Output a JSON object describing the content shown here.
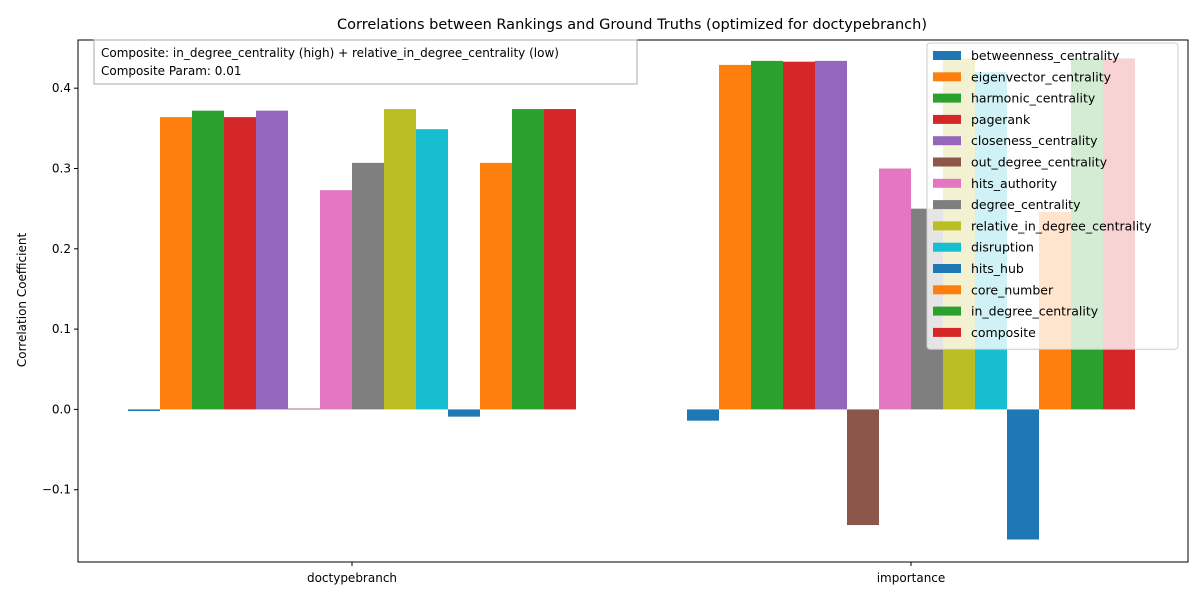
{
  "chart_data": {
    "type": "bar",
    "title": "Correlations between Rankings and Ground Truths (optimized for doctypebranch)",
    "xlabel": "",
    "ylabel": "Correlation Coefficient",
    "categories": [
      "doctypebranch",
      "importance"
    ],
    "ylim": [
      -0.19,
      0.46
    ],
    "yticks": [
      -0.1,
      0.0,
      0.1,
      0.2,
      0.3,
      0.4
    ],
    "ytick_labels": [
      "−0.1",
      "0.0",
      "0.1",
      "0.2",
      "0.3",
      "0.4"
    ],
    "legend_position": "upper right",
    "grid": false,
    "annotation": [
      "Composite: in_degree_centrality (high) + relative_in_degree_centrality (low)",
      "Composite Param: 0.01"
    ],
    "series": [
      {
        "name": "betweenness_centrality",
        "color": "#1f77b4",
        "values": [
          -0.002,
          -0.014
        ]
      },
      {
        "name": "eigenvector_centrality",
        "color": "#ff7f0e",
        "values": [
          0.364,
          0.429
        ]
      },
      {
        "name": "harmonic_centrality",
        "color": "#2ca02c",
        "values": [
          0.372,
          0.434
        ]
      },
      {
        "name": "pagerank",
        "color": "#d62728",
        "values": [
          0.364,
          0.433
        ]
      },
      {
        "name": "closeness_centrality",
        "color": "#9467bd",
        "values": [
          0.372,
          0.434
        ]
      },
      {
        "name": "out_degree_centrality",
        "color": "#8c564b",
        "values": [
          0.001,
          -0.144
        ]
      },
      {
        "name": "hits_authority",
        "color": "#e377c2",
        "values": [
          0.273,
          0.3
        ]
      },
      {
        "name": "degree_centrality",
        "color": "#7f7f7f",
        "values": [
          0.307,
          0.25
        ]
      },
      {
        "name": "relative_in_degree_centrality",
        "color": "#bcbd22",
        "values": [
          0.374,
          0.437
        ]
      },
      {
        "name": "disruption",
        "color": "#17becf",
        "values": [
          0.349,
          0.42
        ]
      },
      {
        "name": "hits_hub",
        "color": "#1f77b4",
        "values": [
          -0.009,
          -0.162
        ]
      },
      {
        "name": "core_number",
        "color": "#ff7f0e",
        "values": [
          0.307,
          0.246
        ]
      },
      {
        "name": "in_degree_centrality",
        "color": "#2ca02c",
        "values": [
          0.374,
          0.437
        ]
      },
      {
        "name": "composite",
        "color": "#d62728",
        "values": [
          0.374,
          0.437
        ]
      }
    ]
  }
}
